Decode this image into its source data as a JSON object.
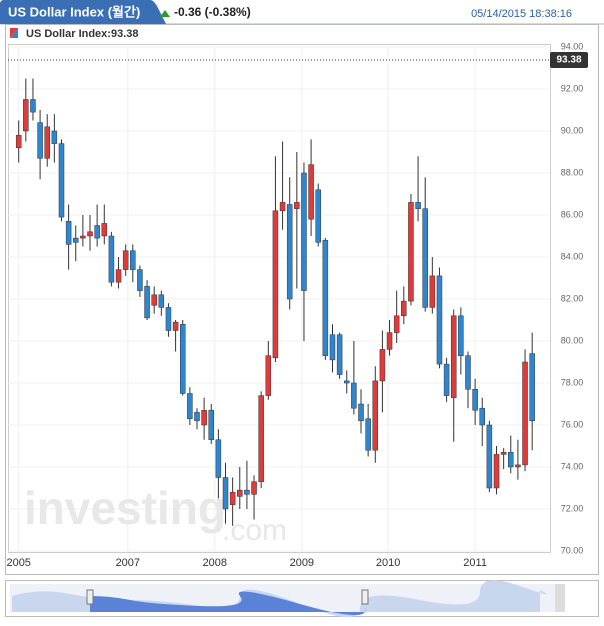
{
  "header": {
    "tab_title": "US Dollar Index (월간)",
    "change": "-0.36 (-0.38%)",
    "timestamp": "05/14/2015 18:38:16"
  },
  "chart_data": {
    "type": "candlestick",
    "legend": "US Dollar Index:93.38",
    "watermark": {
      "brand": "investing",
      "suffix": ".com"
    },
    "last_value": 93.38,
    "up_color": "#e03a3a",
    "down_color": "#2f86d0",
    "x": [
      0,
      1,
      2,
      3,
      4,
      5,
      6,
      7,
      8,
      9,
      10,
      11,
      12,
      13,
      14,
      15,
      16,
      17,
      18,
      19,
      20,
      21,
      22,
      23,
      24,
      25,
      26,
      27,
      28,
      29,
      30,
      31,
      32,
      33,
      34,
      35,
      36,
      37,
      38,
      39,
      40,
      41,
      42,
      43,
      44,
      45,
      46,
      47,
      48,
      49,
      50,
      51,
      52,
      53,
      54,
      55,
      56,
      57,
      58,
      59,
      60,
      61,
      62,
      63,
      64,
      65,
      66,
      67,
      68,
      69,
      70,
      71,
      72
    ],
    "open": [
      89.2,
      90.0,
      91.5,
      90.4,
      88.7,
      90.0,
      89.4,
      85.7,
      84.9,
      84.9,
      85.0,
      85.5,
      85.0,
      85.0,
      82.8,
      83.4,
      84.3,
      83.4,
      82.6,
      81.7,
      82.2,
      81.6,
      80.5,
      80.8,
      77.5,
      76.6,
      76.0,
      76.7,
      75.3,
      73.5,
      72.2,
      72.6,
      72.9,
      72.7,
      73.3,
      77.4,
      79.2,
      86.2,
      86.5,
      86.3,
      88.0,
      85.8,
      87.2,
      84.8,
      80.3,
      80.3,
      78.1,
      78.0,
      77.0,
      76.3,
      74.8,
      78.1,
      79.6,
      80.4,
      81.2,
      81.9,
      86.6,
      86.3,
      81.6,
      83.1,
      78.9,
      77.3,
      81.2,
      79.3,
      77.7,
      76.8,
      76.0,
      73.0,
      74.6,
      74.7,
      74.0,
      74.1,
      79.4
    ],
    "high": [
      90.5,
      92.5,
      92.5,
      91.0,
      90.8,
      90.8,
      89.6,
      86.5,
      85.5,
      86.0,
      86.0,
      86.5,
      86.5,
      85.2,
      84.0,
      84.6,
      84.6,
      83.6,
      82.9,
      82.6,
      82.4,
      81.8,
      81.0,
      81.0,
      77.8,
      76.8,
      77.3,
      77.0,
      75.8,
      74.2,
      73.5,
      74.0,
      74.3,
      73.6,
      77.6,
      80.0,
      88.8,
      89.5,
      87.8,
      89.0,
      88.5,
      89.6,
      87.5,
      84.9,
      80.8,
      80.4,
      78.6,
      80.0,
      77.7,
      77.0,
      78.8,
      80.5,
      81.0,
      82.4,
      82.6,
      87.0,
      88.8,
      87.8,
      84.0,
      83.5,
      79.2,
      81.5,
      81.6,
      79.5,
      78.2,
      77.3,
      76.2,
      75.0,
      74.9,
      75.5,
      75.3,
      79.6,
      80.4
    ],
    "low": [
      88.5,
      89.5,
      90.5,
      87.7,
      88.3,
      88.5,
      85.7,
      83.4,
      83.8,
      84.5,
      84.3,
      84.5,
      84.6,
      82.6,
      82.5,
      83.1,
      82.8,
      82.1,
      81.0,
      81.3,
      81.2,
      80.2,
      79.5,
      77.4,
      76.0,
      75.8,
      75.3,
      75.1,
      72.5,
      71.3,
      71.2,
      72.0,
      72.0,
      71.5,
      73.0,
      77.2,
      79.0,
      85.3,
      81.5,
      82.5,
      80.0,
      85.0,
      84.5,
      79.1,
      78.5,
      78.2,
      77.5,
      76.5,
      75.6,
      74.5,
      74.2,
      76.6,
      79.3,
      79.9,
      80.8,
      81.7,
      85.7,
      81.4,
      81.3,
      78.7,
      77.1,
      75.2,
      78.4,
      76.8,
      76.0,
      75.0,
      72.8,
      72.7,
      73.9,
      73.7,
      73.4,
      73.8,
      74.8
    ],
    "close": [
      89.8,
      91.5,
      90.9,
      88.7,
      90.2,
      89.4,
      85.9,
      84.6,
      84.7,
      85.0,
      85.2,
      84.9,
      85.6,
      82.8,
      83.4,
      84.3,
      83.4,
      82.4,
      81.1,
      82.2,
      81.6,
      80.5,
      80.9,
      77.5,
      76.3,
      76.2,
      76.7,
      75.3,
      73.5,
      72.0,
      72.8,
      72.9,
      72.7,
      73.3,
      77.4,
      79.3,
      86.2,
      86.6,
      82.0,
      86.6,
      82.4,
      88.4,
      84.7,
      79.3,
      79.1,
      78.4,
      78.0,
      76.8,
      76.2,
      74.8,
      78.1,
      79.6,
      80.4,
      81.2,
      81.9,
      86.6,
      86.3,
      81.6,
      83.1,
      78.9,
      77.4,
      81.2,
      79.3,
      77.7,
      76.7,
      76.0,
      73.0,
      74.6,
      74.7,
      74.0,
      74.1,
      79.0,
      76.2
    ],
    "xlim": [
      -1.5,
      74.5
    ],
    "xticks": [
      {
        "value": 0,
        "label": "2005"
      },
      {
        "value": 15.3,
        "label": "2007"
      },
      {
        "value": 27.5,
        "label": "2008"
      },
      {
        "value": 39.7,
        "label": "2009"
      },
      {
        "value": 51.8,
        "label": "2010"
      },
      {
        "value": 64,
        "label": "2011"
      }
    ],
    "ylim": [
      70,
      94
    ],
    "yticks": [
      {
        "value": 70,
        "label": "70.00"
      },
      {
        "value": 72,
        "label": "72.00"
      },
      {
        "value": 74,
        "label": "74.00"
      },
      {
        "value": 76,
        "label": "76.00"
      },
      {
        "value": 78,
        "label": "78.00"
      },
      {
        "value": 80,
        "label": "80.00"
      },
      {
        "value": 82,
        "label": "82.00"
      },
      {
        "value": 84,
        "label": "84.00"
      },
      {
        "value": 86,
        "label": "86.00"
      },
      {
        "value": 88,
        "label": "88.00"
      },
      {
        "value": 90,
        "label": "90.00"
      },
      {
        "value": 92,
        "label": "92.00"
      },
      {
        "value": 94,
        "label": "94.00"
      }
    ],
    "grid": true
  }
}
